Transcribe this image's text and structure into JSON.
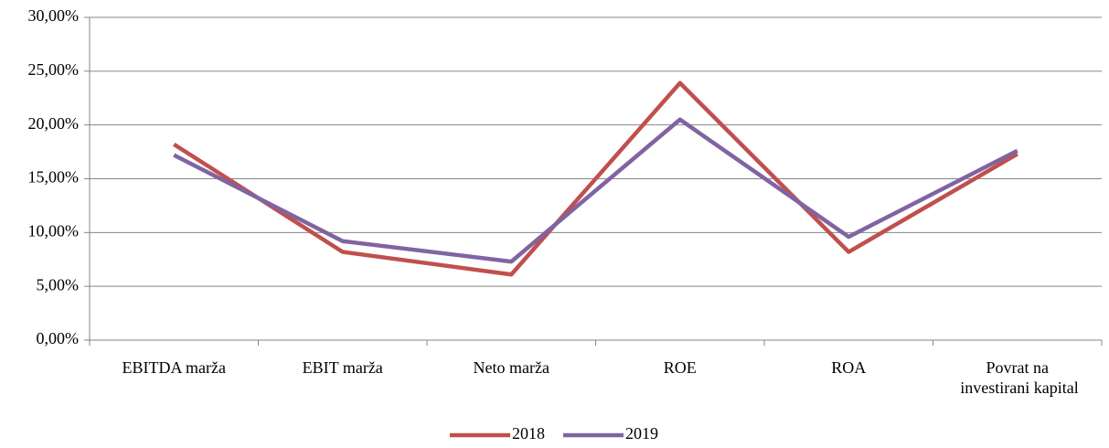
{
  "chart_data": {
    "type": "line",
    "categories": [
      "EBITDA marža",
      "EBIT marža",
      "Neto marža",
      "ROE",
      "ROA",
      "Povrat na investirani kapital"
    ],
    "series": [
      {
        "name": "2018",
        "color": "#c0504d",
        "values": [
          18.2,
          8.2,
          6.1,
          23.9,
          8.2,
          17.3
        ]
      },
      {
        "name": "2019",
        "color": "#8064a2",
        "values": [
          17.2,
          9.2,
          7.3,
          20.5,
          9.6,
          17.6
        ]
      }
    ],
    "ylim": [
      0,
      30
    ],
    "yticks": [
      {
        "value": 0,
        "label": "0,00%"
      },
      {
        "value": 5,
        "label": "5,00%"
      },
      {
        "value": 10,
        "label": "10,00%"
      },
      {
        "value": 15,
        "label": "15,00%"
      },
      {
        "value": 20,
        "label": "20,00%"
      },
      {
        "value": 25,
        "label": "25,00%"
      },
      {
        "value": 30,
        "label": "30,00%"
      }
    ],
    "grid": true,
    "legend": "bottom"
  }
}
